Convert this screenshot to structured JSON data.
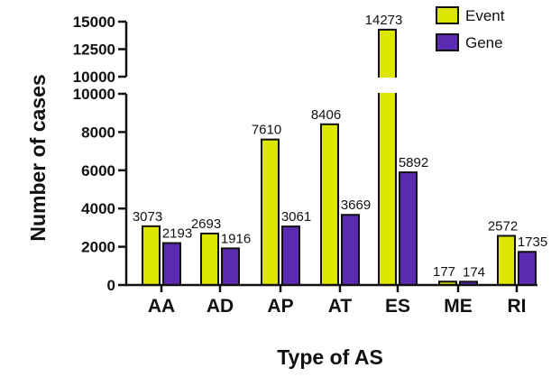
{
  "chart_data": {
    "type": "bar",
    "xlabel": "Type of AS",
    "ylabel": "Number of cases",
    "categories": [
      "AA",
      "AD",
      "AP",
      "AT",
      "ES",
      "ME",
      "RI"
    ],
    "series": [
      {
        "name": "Event",
        "color": "#dde600",
        "values": [
          3073,
          2693,
          7610,
          8406,
          14273,
          177,
          2572
        ]
      },
      {
        "name": "Gene",
        "color": "#5a2ab0",
        "values": [
          2193,
          1916,
          3061,
          3669,
          5892,
          174,
          1735
        ]
      }
    ],
    "y_axis": {
      "broken": true,
      "lower_range": [
        0,
        10000
      ],
      "upper_range": [
        10000,
        15000
      ],
      "lower_ticks": [
        "0",
        "2000",
        "4000",
        "6000",
        "8000",
        "10000"
      ],
      "upper_ticks": [
        "10000",
        "12500",
        "15000"
      ]
    },
    "legend_position": "top-right",
    "grid": false
  }
}
